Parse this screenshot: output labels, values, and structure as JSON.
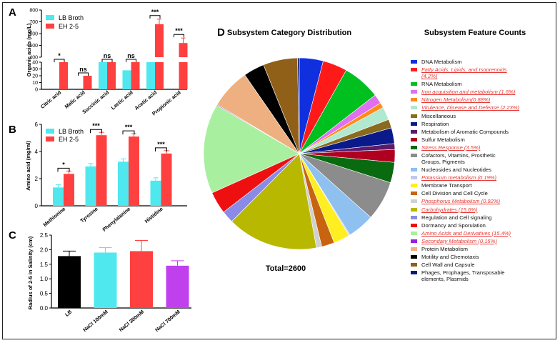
{
  "colors": {
    "lb": "#4fe8ef",
    "eh": "#ff4040",
    "highlight": "#e53935"
  },
  "panels": {
    "A": "A",
    "B": "B",
    "C": "C",
    "D": "D"
  },
  "chart_data": [
    {
      "panel": "A",
      "type": "bar",
      "axis": "broken-y",
      "ylabel": "Organic acids (mg/L)",
      "categories": [
        "Citric acid",
        "Malic acid",
        "Succinic acid",
        "Lactic acid",
        "Acetic acid",
        "Propionic acid"
      ],
      "series": [
        {
          "name": "LB Broth",
          "values": [
            0,
            0,
            40,
            28,
            40,
            0
          ]
        },
        {
          "name": "EH 2-5",
          "values": [
            40,
            20,
            40,
            40,
            680,
            520
          ]
        }
      ],
      "y_ticks_lower": [
        "0",
        "10",
        "20",
        "30",
        "40"
      ],
      "y_ticks_upper": [
        "400",
        "500",
        "600",
        "700",
        "800"
      ],
      "significance": [
        "*",
        "ns",
        "ns",
        "ns",
        "***",
        "***"
      ]
    },
    {
      "panel": "B",
      "type": "bar",
      "ylabel": "Amino acid (mg/ml)",
      "categories": [
        "Methionine",
        "Tyrosine",
        "Phenylalanine",
        "Histidine"
      ],
      "series": [
        {
          "name": "LB Broth",
          "values": [
            1.35,
            2.9,
            3.25,
            1.85
          ]
        },
        {
          "name": "EH 2-5",
          "values": [
            2.35,
            5.2,
            5.1,
            3.85
          ]
        }
      ],
      "ylim": [
        0,
        6
      ],
      "y_ticks": [
        "0",
        "2",
        "4",
        "6"
      ],
      "significance": [
        "*",
        "***",
        "***",
        "***"
      ]
    },
    {
      "panel": "C",
      "type": "bar",
      "ylabel": "Radius of 2-5 in Salinity (cm)",
      "categories": [
        "LB",
        "NaCl 100mM",
        "NaCl 300mM",
        "NaCl 700mM"
      ],
      "values": [
        1.78,
        1.9,
        1.95,
        1.45
      ],
      "bar_colors": [
        "#000000",
        "#4fe8ef",
        "#ff4040",
        "#c040ee"
      ],
      "ylim": [
        0,
        2.5
      ],
      "y_ticks": [
        "0.0",
        "0.5",
        "1.0",
        "1.5",
        "2.0",
        "2.5"
      ]
    },
    {
      "panel": "D",
      "type": "pie",
      "title": "Subsystem Category Distribution",
      "legend_title": "Subsystem Feature Counts",
      "total_label": "Total=2600",
      "slices": [
        {
          "label": "DNA Metabolism",
          "color": "#1030e0",
          "value": 4.1
        },
        {
          "label": "Fatty Acids, Lipids, and Isoprenoids (4.2%)",
          "color": "#ff1a1a",
          "value": 4.2,
          "highlight": true
        },
        {
          "label": "RNA Metabolism",
          "color": "#00c020",
          "value": 6.5
        },
        {
          "label": "Iron acquisition and metabolism (1.6%)",
          "color": "#e070f0",
          "value": 1.6,
          "highlight": true
        },
        {
          "label": "Nitrogen Metabolism(0.88%)",
          "color": "#ff8c1a",
          "value": 0.88,
          "highlight": true
        },
        {
          "label": "Virulence, Disease and Defense (2.23%)",
          "color": "#b0e8d0",
          "value": 2.23,
          "highlight": true
        },
        {
          "label": "Miscellaneous",
          "color": "#8a6a1e",
          "value": 1.5
        },
        {
          "label": "Respiration",
          "color": "#0a1a8a",
          "value": 2.7
        },
        {
          "label": "Metabolism of Aromatic Compounds",
          "color": "#5a1a6e",
          "value": 1.0
        },
        {
          "label": "Sulfur Metabolism",
          "color": "#b00020",
          "value": 2.2
        },
        {
          "label": "Stress Response (3.5%)",
          "color": "#0a6a10",
          "value": 3.5,
          "highlight": true
        },
        {
          "label": "Cofactors, Vitamins, Prosthetic Groups, Pigments",
          "color": "#8c8c8c",
          "value": 6.8
        },
        {
          "label": "Nucleosides and Nucleotides",
          "color": "#8ec0f0",
          "value": 4.6
        },
        {
          "label": "Potassium metabolism (0.19%)",
          "color": "#c0c8f0",
          "value": 0.19,
          "highlight": true
        },
        {
          "label": "Membrane Transport",
          "color": "#ffee22",
          "value": 2.8
        },
        {
          "label": "Cell Division and Cell Cycle",
          "color": "#c86410",
          "value": 2.2
        },
        {
          "label": "Phosphorus Metabolism (0.92%)",
          "color": "#d0d0d0",
          "value": 0.92,
          "highlight": true
        },
        {
          "label": "Carbohydrates (15.6%)",
          "color": "#b8b800",
          "value": 15.6,
          "highlight": true
        },
        {
          "label": "Regulation and Cell signaling",
          "color": "#8a8ae8",
          "value": 2.1
        },
        {
          "label": "Dormancy and Sporulation",
          "color": "#ee1010",
          "value": 3.8
        },
        {
          "label": "Amino Acids and Derivatives (15.4%)",
          "color": "#a8f0a0",
          "value": 15.4,
          "highlight": true
        },
        {
          "label": "Secondary Metabolism (0.15%)",
          "color": "#9a20e0",
          "value": 0.15,
          "highlight": true
        },
        {
          "label": "Protein Metabolism",
          "color": "#eeb080",
          "value": 6.9
        },
        {
          "label": "Motility and Chemotaxis",
          "color": "#000000",
          "value": 3.6
        },
        {
          "label": "Cell Wall and Capsule",
          "color": "#906018",
          "value": 5.9
        },
        {
          "label": "Phages, Prophages, Transposable elements, Plasmids",
          "color": "#0a1a78",
          "value": 0.3
        }
      ]
    }
  ]
}
